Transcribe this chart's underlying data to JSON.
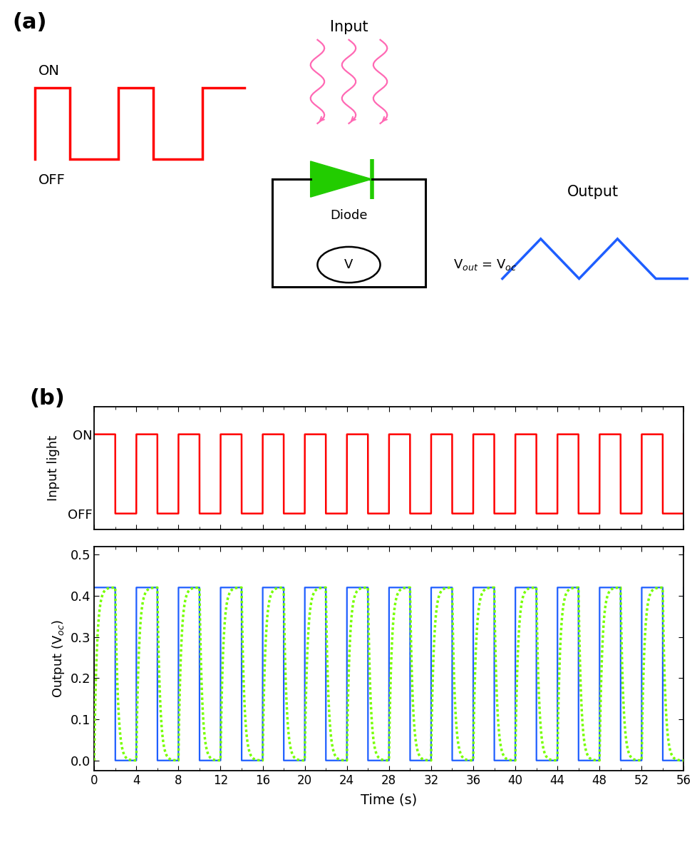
{
  "panel_a_label": "(a)",
  "panel_b_label": "(b)",
  "on_label": "ON",
  "off_label": "OFF",
  "input_label": "Input",
  "diode_label": "Diode",
  "output_label": "Output",
  "vout_label": "V$_{out}$ = V$_{oc}$",
  "input_light_ylabel": "Input light",
  "output_ylabel": "Output (V$_{oc}$)",
  "time_xlabel": "Time (s)",
  "red_color": "#FF0000",
  "blue_color": "#1E5EFF",
  "green_color": "#77FF00",
  "pink_color": "#FF69B4",
  "green_diode": "#22CC00",
  "black": "#000000",
  "square_wave_period": 4,
  "total_time": 56,
  "voc_on": 0.42,
  "yticks_output": [
    0.0,
    0.1,
    0.2,
    0.3,
    0.4,
    0.5
  ],
  "xticks": [
    0,
    4,
    8,
    12,
    16,
    20,
    24,
    28,
    32,
    36,
    40,
    44,
    48,
    52,
    56
  ]
}
